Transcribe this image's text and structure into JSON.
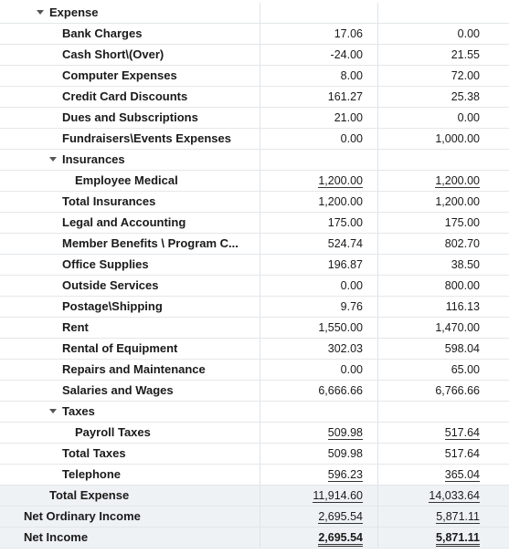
{
  "report": {
    "rows": [
      {
        "label": "Expense",
        "v1": "",
        "v2": ""
      },
      {
        "label": "Bank Charges",
        "v1": "17.06",
        "v2": "0.00"
      },
      {
        "label": "Cash Short\\(Over)",
        "v1": "-24.00",
        "v2": "21.55"
      },
      {
        "label": "Computer Expenses",
        "v1": "8.00",
        "v2": "72.00"
      },
      {
        "label": "Credit Card Discounts",
        "v1": "161.27",
        "v2": "25.38"
      },
      {
        "label": "Dues and Subscriptions",
        "v1": "21.00",
        "v2": "0.00"
      },
      {
        "label": "Fundraisers\\Events Expenses",
        "v1": "0.00",
        "v2": "1,000.00"
      },
      {
        "label": "Insurances",
        "v1": "",
        "v2": ""
      },
      {
        "label": "Employee Medical",
        "v1": "1,200.00",
        "v2": "1,200.00"
      },
      {
        "label": "Total Insurances",
        "v1": "1,200.00",
        "v2": "1,200.00"
      },
      {
        "label": "Legal and Accounting",
        "v1": "175.00",
        "v2": "175.00"
      },
      {
        "label": "Member Benefits \\ Program C...",
        "v1": "524.74",
        "v2": "802.70"
      },
      {
        "label": "Office Supplies",
        "v1": "196.87",
        "v2": "38.50"
      },
      {
        "label": "Outside Services",
        "v1": "0.00",
        "v2": "800.00"
      },
      {
        "label": "Postage\\Shipping",
        "v1": "9.76",
        "v2": "116.13"
      },
      {
        "label": "Rent",
        "v1": "1,550.00",
        "v2": "1,470.00"
      },
      {
        "label": "Rental of Equipment",
        "v1": "302.03",
        "v2": "598.04"
      },
      {
        "label": "Repairs and Maintenance",
        "v1": "0.00",
        "v2": "65.00"
      },
      {
        "label": "Salaries and Wages",
        "v1": "6,666.66",
        "v2": "6,766.66"
      },
      {
        "label": "Taxes",
        "v1": "",
        "v2": ""
      },
      {
        "label": "Payroll Taxes",
        "v1": "509.98",
        "v2": "517.64"
      },
      {
        "label": "Total Taxes",
        "v1": "509.98",
        "v2": "517.64"
      },
      {
        "label": "Telephone",
        "v1": "596.23",
        "v2": "365.04"
      },
      {
        "label": "Total Expense",
        "v1": "11,914.60",
        "v2": "14,033.64"
      },
      {
        "label": "Net Ordinary Income",
        "v1": "2,695.54",
        "v2": "5,871.11"
      },
      {
        "label": "Net Income",
        "v1": "2,695.54",
        "v2": "5,871.11"
      }
    ]
  }
}
